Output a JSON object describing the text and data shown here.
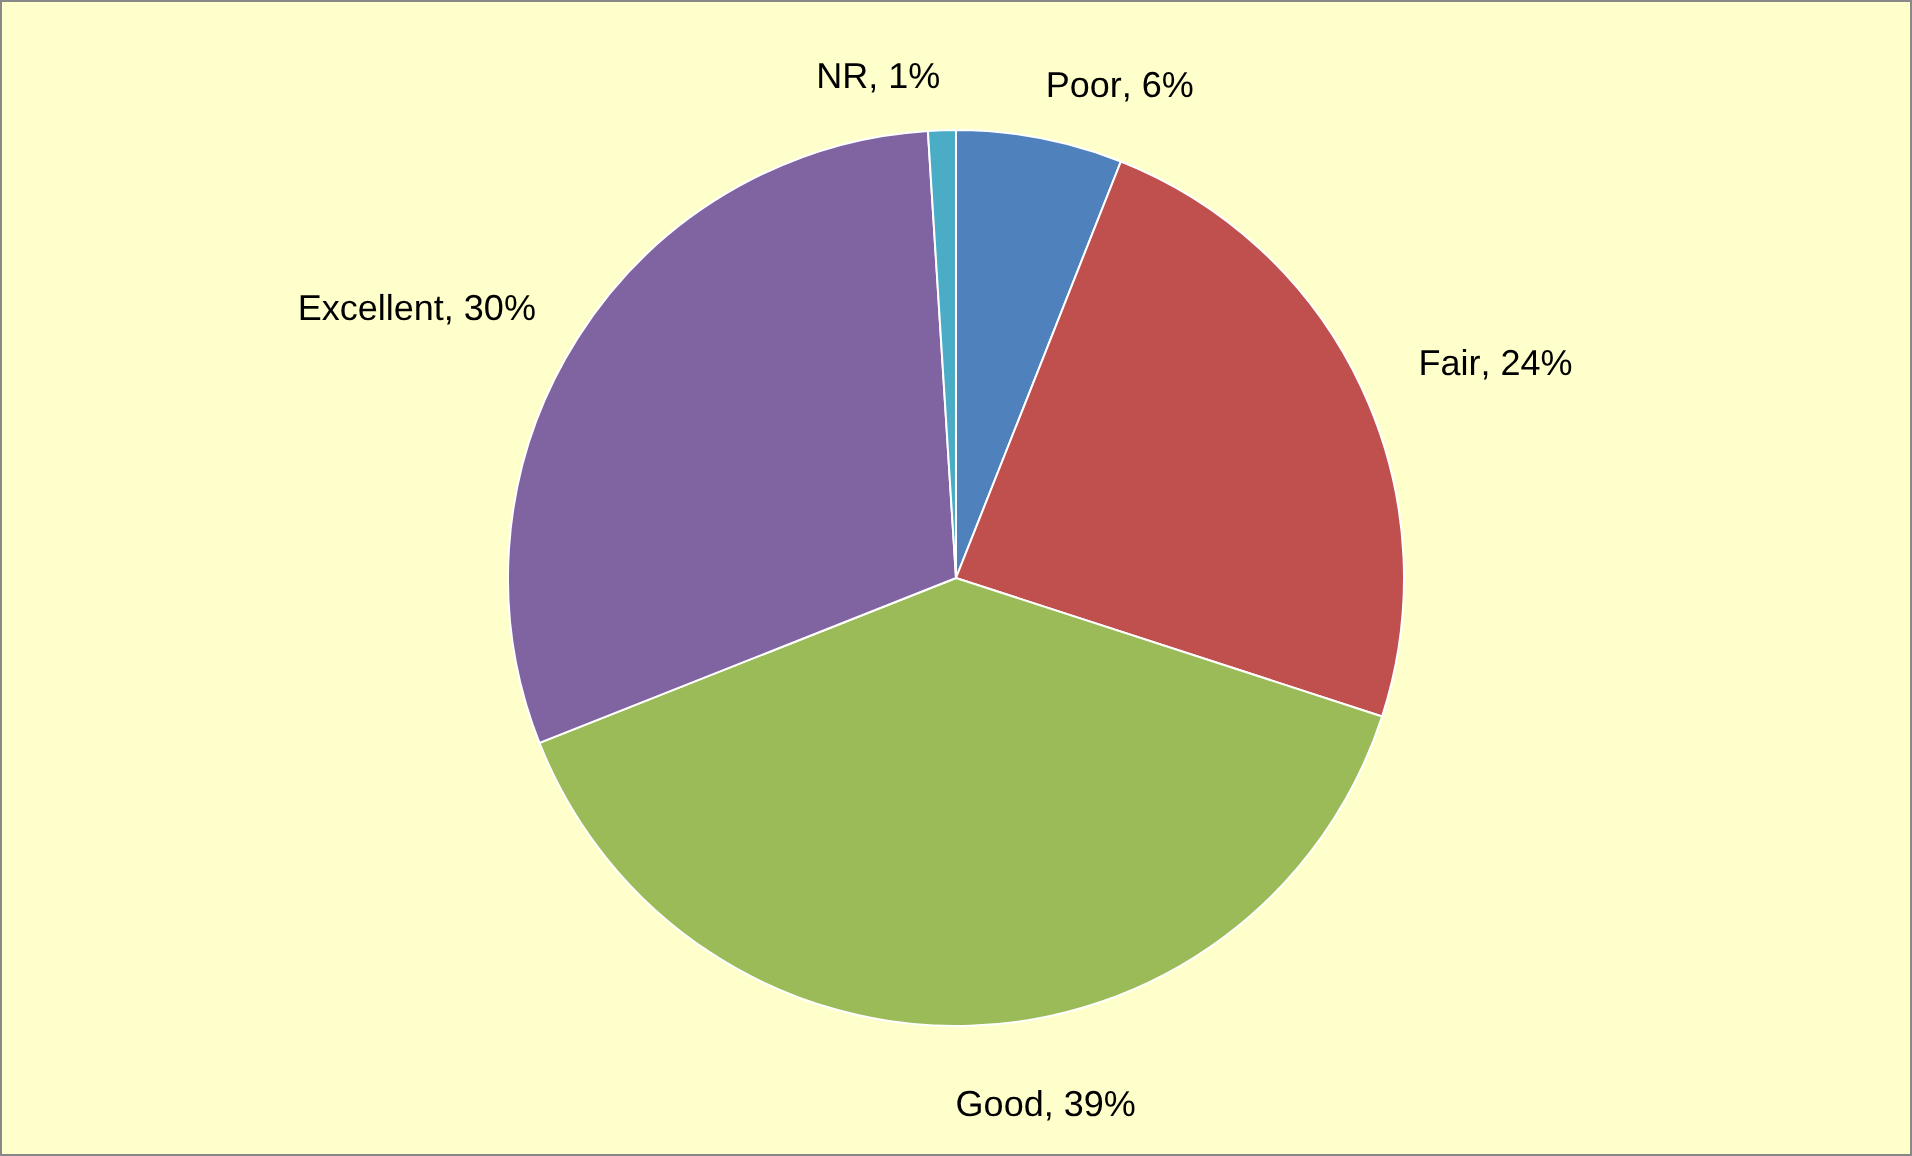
{
  "chart_data": {
    "type": "pie",
    "categories": [
      "Poor",
      "Fair",
      "Good",
      "Excellent",
      "NR"
    ],
    "values": [
      6,
      24,
      39,
      30,
      1
    ],
    "colors": [
      "#4f81bd",
      "#c0504d",
      "#9bbb59",
      "#8064a2",
      "#4bacc6"
    ],
    "value_labels": [
      ", 6%",
      ", 24%",
      ", 39%",
      ", 30%",
      ", 1%"
    ]
  }
}
